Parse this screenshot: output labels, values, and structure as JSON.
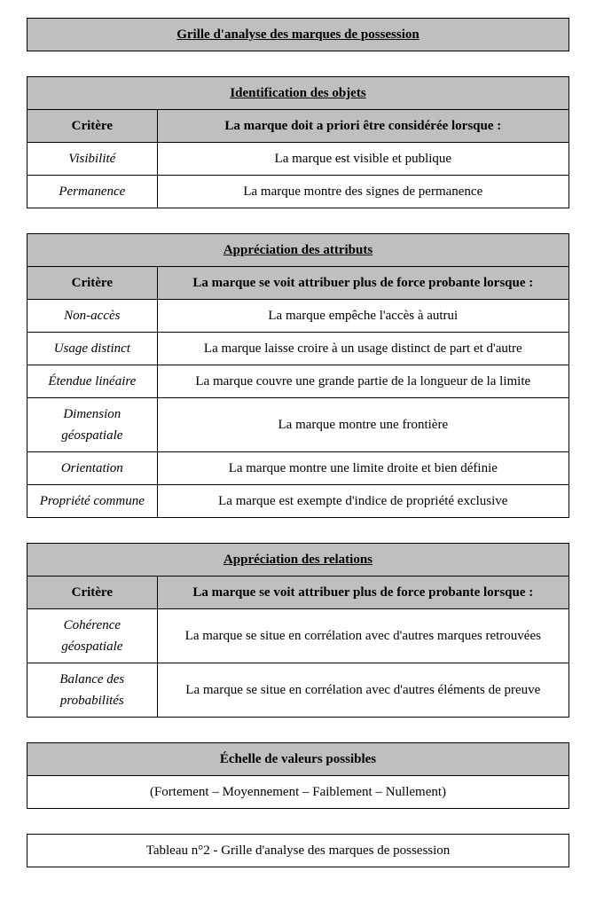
{
  "main_title": "Grille d'analyse des marques de possession",
  "sections": [
    {
      "section_title": "Identification des objets",
      "col1": "Critère",
      "col2": "La marque doit a priori être considérée lorsque :",
      "rows": [
        {
          "critere": "Visibilité",
          "desc": "La marque est visible et publique"
        },
        {
          "critere": "Permanence",
          "desc": "La marque montre des signes de permanence"
        }
      ]
    },
    {
      "section_title": "Appréciation des attributs",
      "col1": "Critère",
      "col2": "La marque se voit attribuer plus de force probante lorsque :",
      "rows": [
        {
          "critere": "Non-accès",
          "desc": "La marque empêche l'accès à autrui"
        },
        {
          "critere": "Usage distinct",
          "desc": "La marque laisse croire à un usage distinct de part et d'autre"
        },
        {
          "critere": "Étendue linéaire",
          "desc": "La marque couvre une grande partie de la longueur de la limite"
        },
        {
          "critere": "Dimension géospatiale",
          "desc": "La marque montre une frontière"
        },
        {
          "critere": "Orientation",
          "desc": "La marque montre une limite droite et bien définie"
        },
        {
          "critere": "Propriété commune",
          "desc": "La marque est exempte d'indice de propriété exclusive"
        }
      ]
    },
    {
      "section_title": "Appréciation des relations",
      "col1": "Critère",
      "col2": "La marque se voit attribuer plus de force probante lorsque :",
      "rows": [
        {
          "critere": "Cohérence géospatiale",
          "desc": "La marque se situe en corrélation avec d'autres marques retrouvées"
        },
        {
          "critere": "Balance des probabilités",
          "desc": "La marque se situe en corrélation avec d'autres éléments de preuve"
        }
      ]
    }
  ],
  "scale_section": {
    "title": "Échelle de valeurs possibles",
    "values": "(Fortement – Moyennement – Faiblement – Nullement)"
  },
  "caption": "Tableau n°2 - Grille d'analyse des marques de possession",
  "colors": {
    "header_bg": "#bfbfbf",
    "border": "#000000",
    "text": "#000000",
    "background": "#ffffff"
  }
}
